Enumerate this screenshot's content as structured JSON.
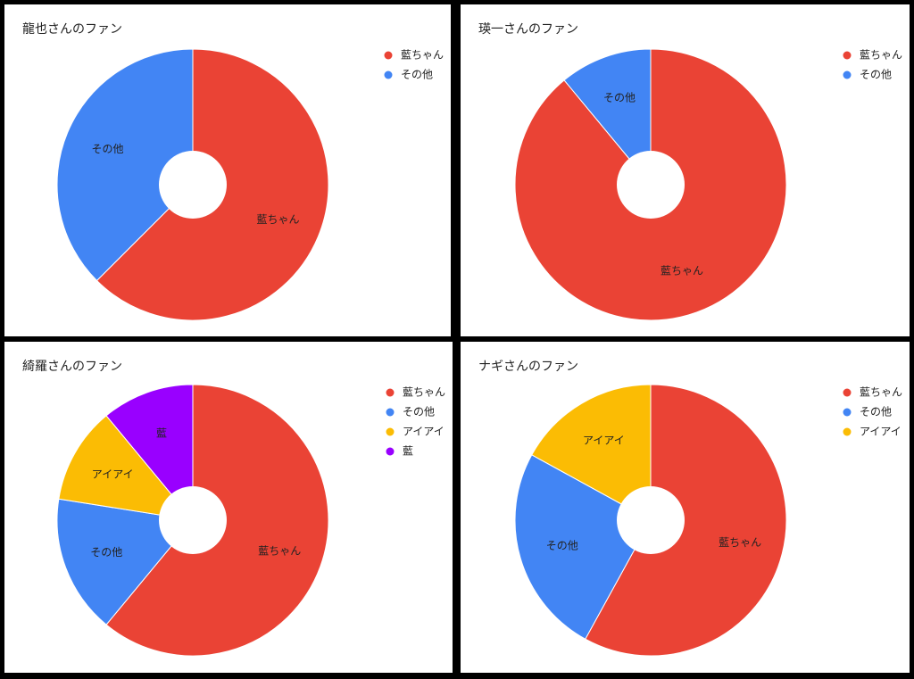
{
  "chart_data": [
    {
      "type": "pie",
      "title": "龍也さんのファン",
      "categories": [
        "藍ちゃん",
        "その他"
      ],
      "values": [
        62.5,
        37.5
      ],
      "colors": [
        "#ea4335",
        "#4285f4"
      ],
      "legend": "right"
    },
    {
      "type": "pie",
      "title": "瑛一さんのファン",
      "categories": [
        "藍ちゃん",
        "その他"
      ],
      "values": [
        89,
        11
      ],
      "colors": [
        "#ea4335",
        "#4285f4"
      ],
      "legend": "right"
    },
    {
      "type": "pie",
      "title": "綺羅さんのファン",
      "categories": [
        "藍ちゃん",
        "その他",
        "アイアイ",
        "藍"
      ],
      "values": [
        61,
        16.5,
        11.5,
        11
      ],
      "colors": [
        "#ea4335",
        "#4285f4",
        "#fbbc04",
        "#9900ff"
      ],
      "legend": "right"
    },
    {
      "type": "pie",
      "title": "ナギさんのファン",
      "categories": [
        "藍ちゃん",
        "その他",
        "アイアイ"
      ],
      "values": [
        58,
        25,
        17
      ],
      "colors": [
        "#ea4335",
        "#4285f4",
        "#fbbc04"
      ],
      "legend": "right"
    }
  ]
}
